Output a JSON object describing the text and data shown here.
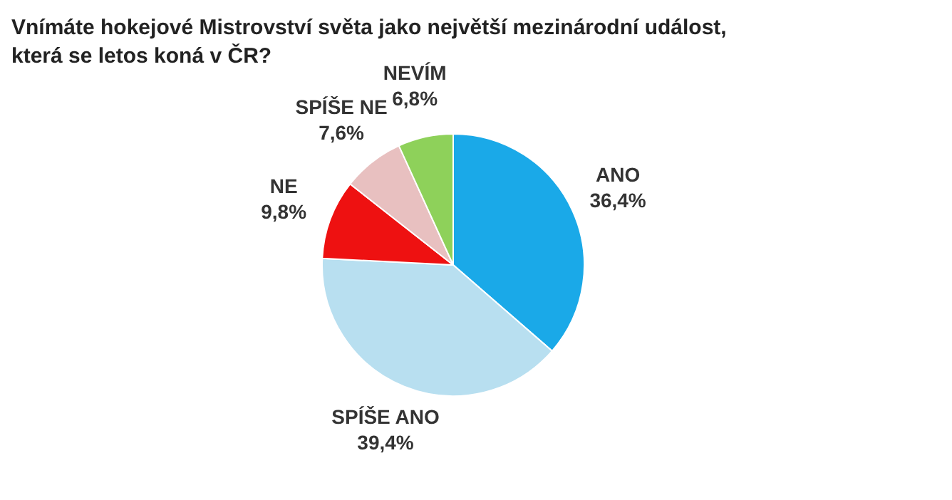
{
  "chart_data": {
    "type": "pie",
    "title": "Vnímáte hokejové Mistrovství světa jako největší mezinárodní událost,\nkterá se letos koná v ČR?",
    "categories": [
      "ANO",
      "SPÍŠE ANO",
      "NE",
      "SPÍŠE NE",
      "NEVÍM"
    ],
    "values": [
      36.4,
      39.4,
      9.8,
      7.6,
      6.8
    ],
    "value_labels": [
      "36,4%",
      "39,4%",
      "9,8%",
      "7,6%",
      "6,8%"
    ],
    "colors": [
      "#1aa9e8",
      "#b8dff0",
      "#ee1111",
      "#e8c0c0",
      "#8ed15a"
    ]
  }
}
